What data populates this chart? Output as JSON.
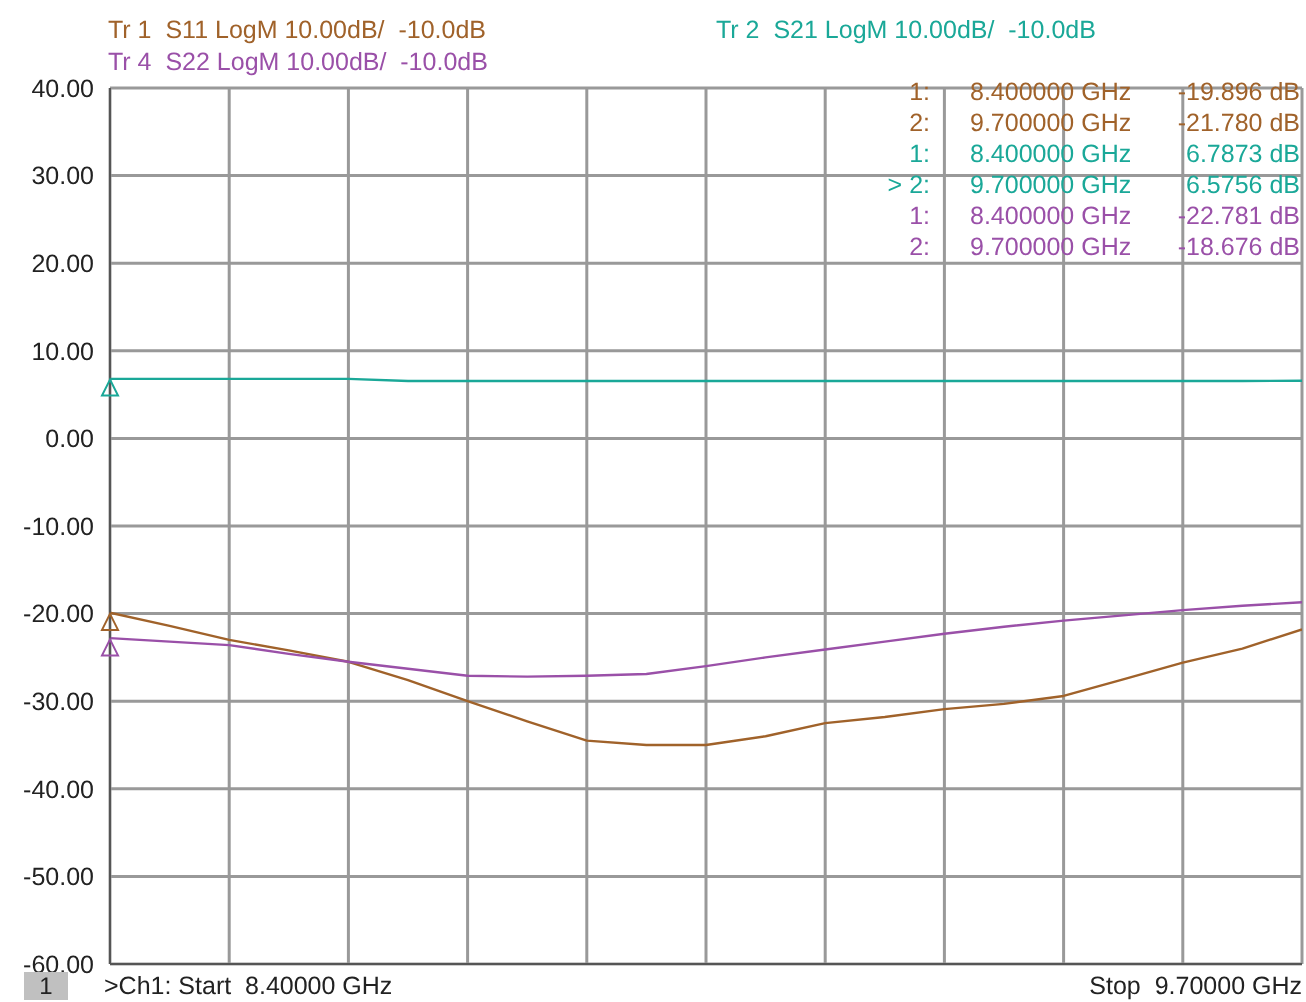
{
  "chart_data": {
    "type": "line",
    "grid": true,
    "tick_labels": "y",
    "line_style": "solid",
    "marker": "none",
    "categories": [
      null,
      null,
      null,
      null,
      null,
      null,
      null,
      null,
      null,
      null,
      null,
      null,
      null,
      null,
      null,
      null,
      null,
      null,
      null,
      null,
      null
    ],
    "ylim": [
      -60,
      40
    ],
    "yticks": [
      {
        "value": -60,
        "label": "-60.00"
      },
      {
        "value": -50,
        "label": "-50.00"
      },
      {
        "value": -40,
        "label": "-40.00"
      },
      {
        "value": -30,
        "label": "-30.00"
      },
      {
        "value": -20,
        "label": "-20.00"
      },
      {
        "value": -10,
        "label": "-10.00"
      },
      {
        "value": 0,
        "label": "0.00"
      },
      {
        "value": 10,
        "label": "10.00"
      },
      {
        "value": 20,
        "label": "20.00"
      },
      {
        "value": 30,
        "label": "30.00"
      },
      {
        "value": 40,
        "label": "40.00"
      }
    ],
    "series": [
      {
        "name": "Tr 1  S11 LogM 10.00dB/  -10.0dB",
        "color": "#a0622a",
        "values": [
          -19.9,
          -21.4,
          -23.0,
          -24.2,
          -25.5,
          -27.6,
          -30.0,
          -32.3,
          -34.5,
          -35.0,
          -35.0,
          -34.0,
          -32.5,
          -31.8,
          -30.9,
          -30.3,
          -29.4,
          -27.5,
          -25.6,
          -24.0,
          -21.8
        ]
      },
      {
        "name": "Tr 2  S21 LogM 10.00dB/  -10.0dB",
        "color": "#1aa898",
        "values": [
          6.79,
          6.79,
          6.79,
          6.79,
          6.79,
          6.55,
          6.55,
          6.55,
          6.55,
          6.55,
          6.55,
          6.55,
          6.55,
          6.55,
          6.55,
          6.55,
          6.55,
          6.55,
          6.55,
          6.55,
          6.58
        ]
      },
      {
        "name": "Tr 4  S22 LogM 10.00dB/  -10.0dB",
        "color": "#9a50a8",
        "values": [
          -22.8,
          -23.2,
          -23.6,
          -24.6,
          -25.5,
          -26.3,
          -27.1,
          -27.2,
          -27.1,
          -26.9,
          -26.0,
          -25.0,
          -24.1,
          -23.2,
          -22.3,
          -21.5,
          -20.8,
          -20.2,
          -19.6,
          -19.1,
          -18.7
        ]
      }
    ],
    "annotations": [
      "1:",
      "8.400000 GHz",
      "-19.896 dB",
      "2:",
      "9.700000 GHz",
      "-21.780 dB",
      "1:",
      "8.400000 GHz",
      "6.7873 dB",
      "> 2:",
      "9.700000 GHz",
      "6.5756 dB",
      "1:",
      "8.400000 GHz",
      "-22.781 dB",
      "2:",
      "9.700000 GHz",
      "-18.676 dB",
      "1",
      ">Ch1: Start  8.40000 GHz",
      "Stop  9.70000 GHz"
    ]
  }
}
